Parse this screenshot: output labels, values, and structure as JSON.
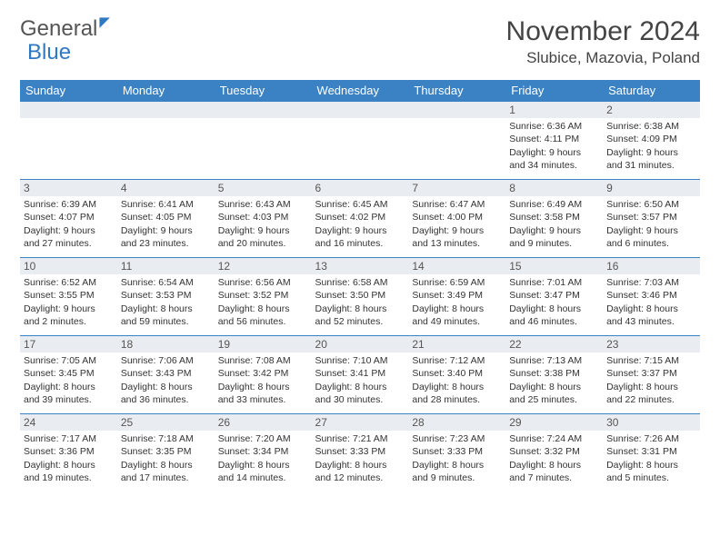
{
  "logo": {
    "general": "General",
    "blue": "Blue"
  },
  "title": "November 2024",
  "location": "Slubice, Mazovia, Poland",
  "columns": [
    "Sunday",
    "Monday",
    "Tuesday",
    "Wednesday",
    "Thursday",
    "Friday",
    "Saturday"
  ],
  "colors": {
    "header_bg": "#3a82c4",
    "header_fg": "#ffffff",
    "border": "#3a82c4",
    "daynum_bg": "#e9edf1",
    "text": "#333333",
    "logo_blue": "#2f78c2"
  },
  "weeks": [
    [
      null,
      null,
      null,
      null,
      null,
      {
        "n": "1",
        "sr": "6:36 AM",
        "ss": "4:11 PM",
        "dl": "9 hours and 34 minutes."
      },
      {
        "n": "2",
        "sr": "6:38 AM",
        "ss": "4:09 PM",
        "dl": "9 hours and 31 minutes."
      }
    ],
    [
      {
        "n": "3",
        "sr": "6:39 AM",
        "ss": "4:07 PM",
        "dl": "9 hours and 27 minutes."
      },
      {
        "n": "4",
        "sr": "6:41 AM",
        "ss": "4:05 PM",
        "dl": "9 hours and 23 minutes."
      },
      {
        "n": "5",
        "sr": "6:43 AM",
        "ss": "4:03 PM",
        "dl": "9 hours and 20 minutes."
      },
      {
        "n": "6",
        "sr": "6:45 AM",
        "ss": "4:02 PM",
        "dl": "9 hours and 16 minutes."
      },
      {
        "n": "7",
        "sr": "6:47 AM",
        "ss": "4:00 PM",
        "dl": "9 hours and 13 minutes."
      },
      {
        "n": "8",
        "sr": "6:49 AM",
        "ss": "3:58 PM",
        "dl": "9 hours and 9 minutes."
      },
      {
        "n": "9",
        "sr": "6:50 AM",
        "ss": "3:57 PM",
        "dl": "9 hours and 6 minutes."
      }
    ],
    [
      {
        "n": "10",
        "sr": "6:52 AM",
        "ss": "3:55 PM",
        "dl": "9 hours and 2 minutes."
      },
      {
        "n": "11",
        "sr": "6:54 AM",
        "ss": "3:53 PM",
        "dl": "8 hours and 59 minutes."
      },
      {
        "n": "12",
        "sr": "6:56 AM",
        "ss": "3:52 PM",
        "dl": "8 hours and 56 minutes."
      },
      {
        "n": "13",
        "sr": "6:58 AM",
        "ss": "3:50 PM",
        "dl": "8 hours and 52 minutes."
      },
      {
        "n": "14",
        "sr": "6:59 AM",
        "ss": "3:49 PM",
        "dl": "8 hours and 49 minutes."
      },
      {
        "n": "15",
        "sr": "7:01 AM",
        "ss": "3:47 PM",
        "dl": "8 hours and 46 minutes."
      },
      {
        "n": "16",
        "sr": "7:03 AM",
        "ss": "3:46 PM",
        "dl": "8 hours and 43 minutes."
      }
    ],
    [
      {
        "n": "17",
        "sr": "7:05 AM",
        "ss": "3:45 PM",
        "dl": "8 hours and 39 minutes."
      },
      {
        "n": "18",
        "sr": "7:06 AM",
        "ss": "3:43 PM",
        "dl": "8 hours and 36 minutes."
      },
      {
        "n": "19",
        "sr": "7:08 AM",
        "ss": "3:42 PM",
        "dl": "8 hours and 33 minutes."
      },
      {
        "n": "20",
        "sr": "7:10 AM",
        "ss": "3:41 PM",
        "dl": "8 hours and 30 minutes."
      },
      {
        "n": "21",
        "sr": "7:12 AM",
        "ss": "3:40 PM",
        "dl": "8 hours and 28 minutes."
      },
      {
        "n": "22",
        "sr": "7:13 AM",
        "ss": "3:38 PM",
        "dl": "8 hours and 25 minutes."
      },
      {
        "n": "23",
        "sr": "7:15 AM",
        "ss": "3:37 PM",
        "dl": "8 hours and 22 minutes."
      }
    ],
    [
      {
        "n": "24",
        "sr": "7:17 AM",
        "ss": "3:36 PM",
        "dl": "8 hours and 19 minutes."
      },
      {
        "n": "25",
        "sr": "7:18 AM",
        "ss": "3:35 PM",
        "dl": "8 hours and 17 minutes."
      },
      {
        "n": "26",
        "sr": "7:20 AM",
        "ss": "3:34 PM",
        "dl": "8 hours and 14 minutes."
      },
      {
        "n": "27",
        "sr": "7:21 AM",
        "ss": "3:33 PM",
        "dl": "8 hours and 12 minutes."
      },
      {
        "n": "28",
        "sr": "7:23 AM",
        "ss": "3:33 PM",
        "dl": "8 hours and 9 minutes."
      },
      {
        "n": "29",
        "sr": "7:24 AM",
        "ss": "3:32 PM",
        "dl": "8 hours and 7 minutes."
      },
      {
        "n": "30",
        "sr": "7:26 AM",
        "ss": "3:31 PM",
        "dl": "8 hours and 5 minutes."
      }
    ]
  ],
  "labels": {
    "sunrise": "Sunrise:",
    "sunset": "Sunset:",
    "daylight": "Daylight:"
  }
}
